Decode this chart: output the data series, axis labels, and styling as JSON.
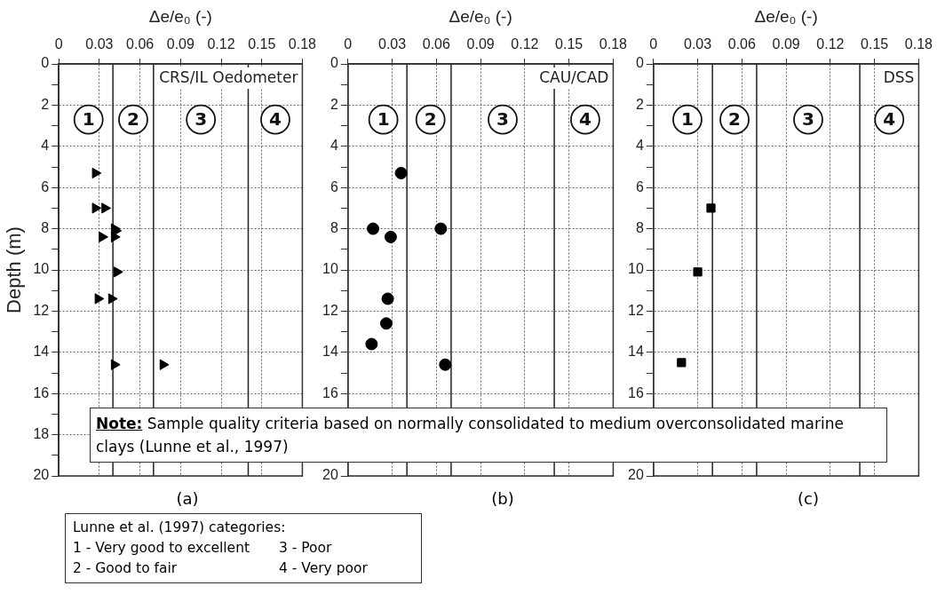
{
  "chart_data": [
    {
      "type": "scatter",
      "xlabel": "Δe/e₀ (-)",
      "ylabel": "Depth (m)",
      "marker": "triangle",
      "grid": true,
      "xlim": [
        0,
        0.18
      ],
      "xticks": [
        0,
        0.03,
        0.06,
        0.09,
        0.12,
        0.15,
        0.18
      ],
      "ylim": [
        20,
        0
      ],
      "yticks": [
        0,
        {
          "value": 1,
          "label": null
        },
        2,
        {
          "value": 3,
          "label": null
        },
        4,
        {
          "value": 5,
          "label": null
        },
        6,
        {
          "value": 7,
          "label": null
        },
        8,
        {
          "value": 9,
          "label": null
        },
        10,
        {
          "value": 11,
          "label": null
        },
        12,
        {
          "value": 13,
          "label": null
        },
        14,
        {
          "value": 15,
          "label": null
        },
        16,
        {
          "value": 17,
          "label": null
        },
        18,
        {
          "value": 19,
          "label": null
        },
        20
      ],
      "series": [
        {
          "color": "#000000",
          "x": [
            0.027,
            0.027,
            0.034,
            0.041,
            0.042,
            0.032,
            0.041,
            0.043,
            0.029,
            0.039,
            0.041,
            0.077
          ],
          "values": [
            5.3,
            7.0,
            7.0,
            8.0,
            8.1,
            8.4,
            8.4,
            10.1,
            11.4,
            11.4,
            14.6,
            14.6
          ]
        }
      ],
      "ref_lines": [
        {
          "axis": "x",
          "value": 0.04
        },
        {
          "axis": "x",
          "value": 0.07
        },
        {
          "axis": "x",
          "value": 0.14
        }
      ],
      "annotations": [
        "CRS/IL Oedometer",
        "(a)",
        "Note: Sample quality criteria based on normally consolidated to medium overconsolidated marine clays (Lunne et al., 1997)",
        {
          "text": "1",
          "x": 0.022,
          "y": 2.7
        },
        {
          "text": "2",
          "x": 0.055,
          "y": 2.7
        },
        {
          "text": "3",
          "x": 0.105,
          "y": 2.7
        },
        {
          "text": "4",
          "x": 0.16,
          "y": 2.7
        }
      ]
    },
    {
      "type": "scatter",
      "xlabel": "Δe/e₀ (-)",
      "marker": "circle",
      "grid": true,
      "xlim": [
        0,
        0.18
      ],
      "xticks": [
        0,
        0.03,
        0.06,
        0.09,
        0.12,
        0.15,
        0.18
      ],
      "ylim": [
        20,
        0
      ],
      "yticks": [
        0,
        {
          "value": 1,
          "label": null
        },
        2,
        {
          "value": 3,
          "label": null
        },
        4,
        {
          "value": 5,
          "label": null
        },
        6,
        {
          "value": 7,
          "label": null
        },
        8,
        {
          "value": 9,
          "label": null
        },
        10,
        {
          "value": 11,
          "label": null
        },
        12,
        {
          "value": 13,
          "label": null
        },
        14,
        {
          "value": 15,
          "label": null
        },
        16,
        {
          "value": 17,
          "label": null
        },
        {
          "value": 18,
          "label": null
        },
        {
          "value": 19,
          "label": null
        },
        20
      ],
      "series": [
        {
          "color": "#000000",
          "x": [
            0.036,
            0.017,
            0.063,
            0.029,
            0.027,
            0.026,
            0.016,
            0.066
          ],
          "values": [
            5.3,
            8.0,
            8.0,
            8.4,
            11.4,
            12.6,
            13.6,
            14.6
          ]
        }
      ],
      "ref_lines": [
        {
          "axis": "x",
          "value": 0.04
        },
        {
          "axis": "x",
          "value": 0.07
        },
        {
          "axis": "x",
          "value": 0.14
        }
      ],
      "annotations": [
        "CAU/CAD",
        "(b)",
        {
          "text": "1",
          "x": 0.024,
          "y": 2.7
        },
        {
          "text": "2",
          "x": 0.056,
          "y": 2.7
        },
        {
          "text": "3",
          "x": 0.105,
          "y": 2.7
        },
        {
          "text": "4",
          "x": 0.161,
          "y": 2.7
        }
      ]
    },
    {
      "type": "scatter",
      "xlabel": "Δe/e₀ (-)",
      "marker": "square",
      "grid": true,
      "xlim": [
        0,
        0.18
      ],
      "xticks": [
        0,
        0.03,
        0.06,
        0.09,
        0.12,
        0.15,
        0.18
      ],
      "ylim": [
        20,
        0
      ],
      "yticks": [
        0,
        {
          "value": 1,
          "label": null
        },
        2,
        {
          "value": 3,
          "label": null
        },
        4,
        {
          "value": 5,
          "label": null
        },
        6,
        {
          "value": 7,
          "label": null
        },
        8,
        {
          "value": 9,
          "label": null
        },
        10,
        {
          "value": 11,
          "label": null
        },
        12,
        {
          "value": 13,
          "label": null
        },
        14,
        {
          "value": 15,
          "label": null
        },
        16,
        {
          "value": 17,
          "label": null
        },
        {
          "value": 18,
          "label": null
        },
        {
          "value": 19,
          "label": null
        },
        20
      ],
      "series": [
        {
          "color": "#000000",
          "x": [
            0.039,
            0.03,
            0.019
          ],
          "values": [
            7.0,
            10.1,
            14.5
          ]
        }
      ],
      "ref_lines": [
        {
          "axis": "x",
          "value": 0.04
        },
        {
          "axis": "x",
          "value": 0.07
        },
        {
          "axis": "x",
          "value": 0.14
        }
      ],
      "annotations": [
        "DSS",
        "(c)",
        {
          "text": "1",
          "x": 0.023,
          "y": 2.7
        },
        {
          "text": "2",
          "x": 0.055,
          "y": 2.7
        },
        {
          "text": "3",
          "x": 0.105,
          "y": 2.7
        },
        {
          "text": "4",
          "x": 0.16,
          "y": 2.7
        }
      ]
    },
    {
      "type": "other",
      "title": "Lunne et al. (1997) categories:",
      "annotations": [
        "1 - Very good to excellent",
        "3 - Poor",
        "2 - Good to fair",
        "4 - Very poor"
      ]
    }
  ]
}
